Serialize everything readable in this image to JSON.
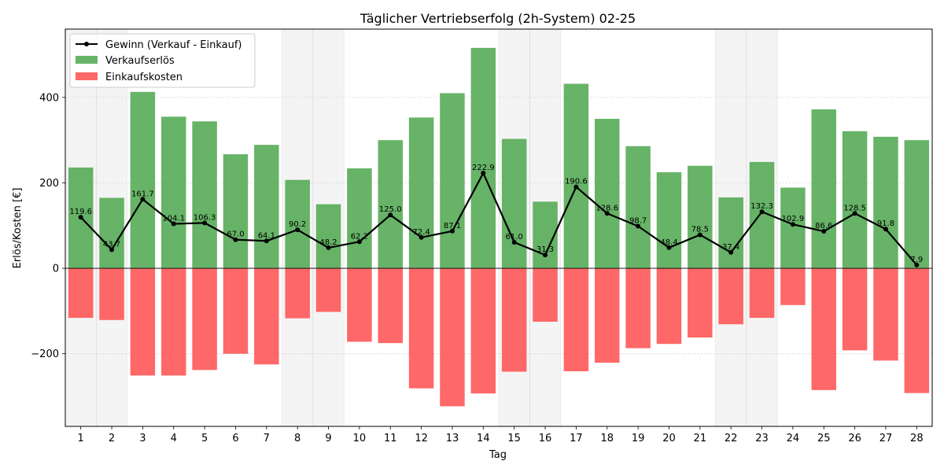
{
  "chart_data": {
    "type": "bar",
    "title": "Täglicher Vertriebserfolg (2h-System) 02-25",
    "xlabel": "Tag",
    "ylabel": "Erlös/Kosten [€]",
    "ylim": [
      -370,
      560
    ],
    "yticks": [
      -200,
      0,
      200,
      400
    ],
    "ytick_labels": [
      "−200",
      "0",
      "200",
      "400"
    ],
    "grid": "horizontal-dotted",
    "legend_position": "top-left",
    "categories": [
      1,
      2,
      3,
      4,
      5,
      6,
      7,
      8,
      9,
      10,
      11,
      12,
      13,
      14,
      15,
      16,
      17,
      18,
      19,
      20,
      21,
      22,
      23,
      24,
      25,
      26,
      27,
      28
    ],
    "category_labels": [
      "1",
      "2",
      "3",
      "4",
      "5",
      "6",
      "7",
      "8",
      "9",
      "10",
      "11",
      "12",
      "13",
      "14",
      "15",
      "16",
      "17",
      "18",
      "19",
      "20",
      "21",
      "22",
      "23",
      "24",
      "25",
      "26",
      "27",
      "28"
    ],
    "highlighted_days": [
      1,
      2,
      8,
      9,
      15,
      16,
      22,
      23
    ],
    "series": [
      {
        "name": "Gewinn (Verkauf - Einkauf)",
        "kind": "line",
        "color": "#000000",
        "values": [
          119.6,
          43.7,
          161.7,
          104.1,
          106.3,
          67.0,
          64.1,
          90.2,
          48.2,
          62.2,
          125.0,
          72.4,
          87.1,
          222.9,
          61.0,
          31.3,
          190.6,
          128.6,
          98.7,
          48.4,
          78.5,
          37.4,
          132.3,
          102.9,
          86.6,
          128.5,
          91.8,
          7.9
        ],
        "value_labels": [
          "119.6",
          "43.7",
          "161.7",
          "104.1",
          "106.3",
          "67.0",
          "64.1",
          "90.2",
          "48.2",
          "62.2",
          "125.0",
          "72.4",
          "87.1",
          "222.9",
          "61.0",
          "31.3",
          "190.6",
          "128.6",
          "98.7",
          "48.4",
          "78.5",
          "37.4",
          "132.3",
          "102.9",
          "86.6",
          "128.5",
          "91.8",
          "7.9"
        ]
      },
      {
        "name": "Verkaufserlös",
        "kind": "bar",
        "color": "#4ca64c",
        "values": [
          236,
          165,
          413,
          355,
          344,
          267,
          289,
          207,
          150,
          234,
          300,
          353,
          410,
          516,
          303,
          156,
          432,
          350,
          286,
          225,
          240,
          166,
          249,
          189,
          372,
          321,
          308,
          300
        ]
      },
      {
        "name": "Einkaufskosten",
        "kind": "bar",
        "color": "#ff4d4d",
        "values": [
          -116,
          -121,
          -251,
          -251,
          -238,
          -200,
          -225,
          -117,
          -102,
          -172,
          -175,
          -281,
          -323,
          -293,
          -242,
          -125,
          -241,
          -221,
          -187,
          -177,
          -162,
          -131,
          -116,
          -86,
          -285,
          -192,
          -216,
          -292
        ]
      }
    ]
  }
}
